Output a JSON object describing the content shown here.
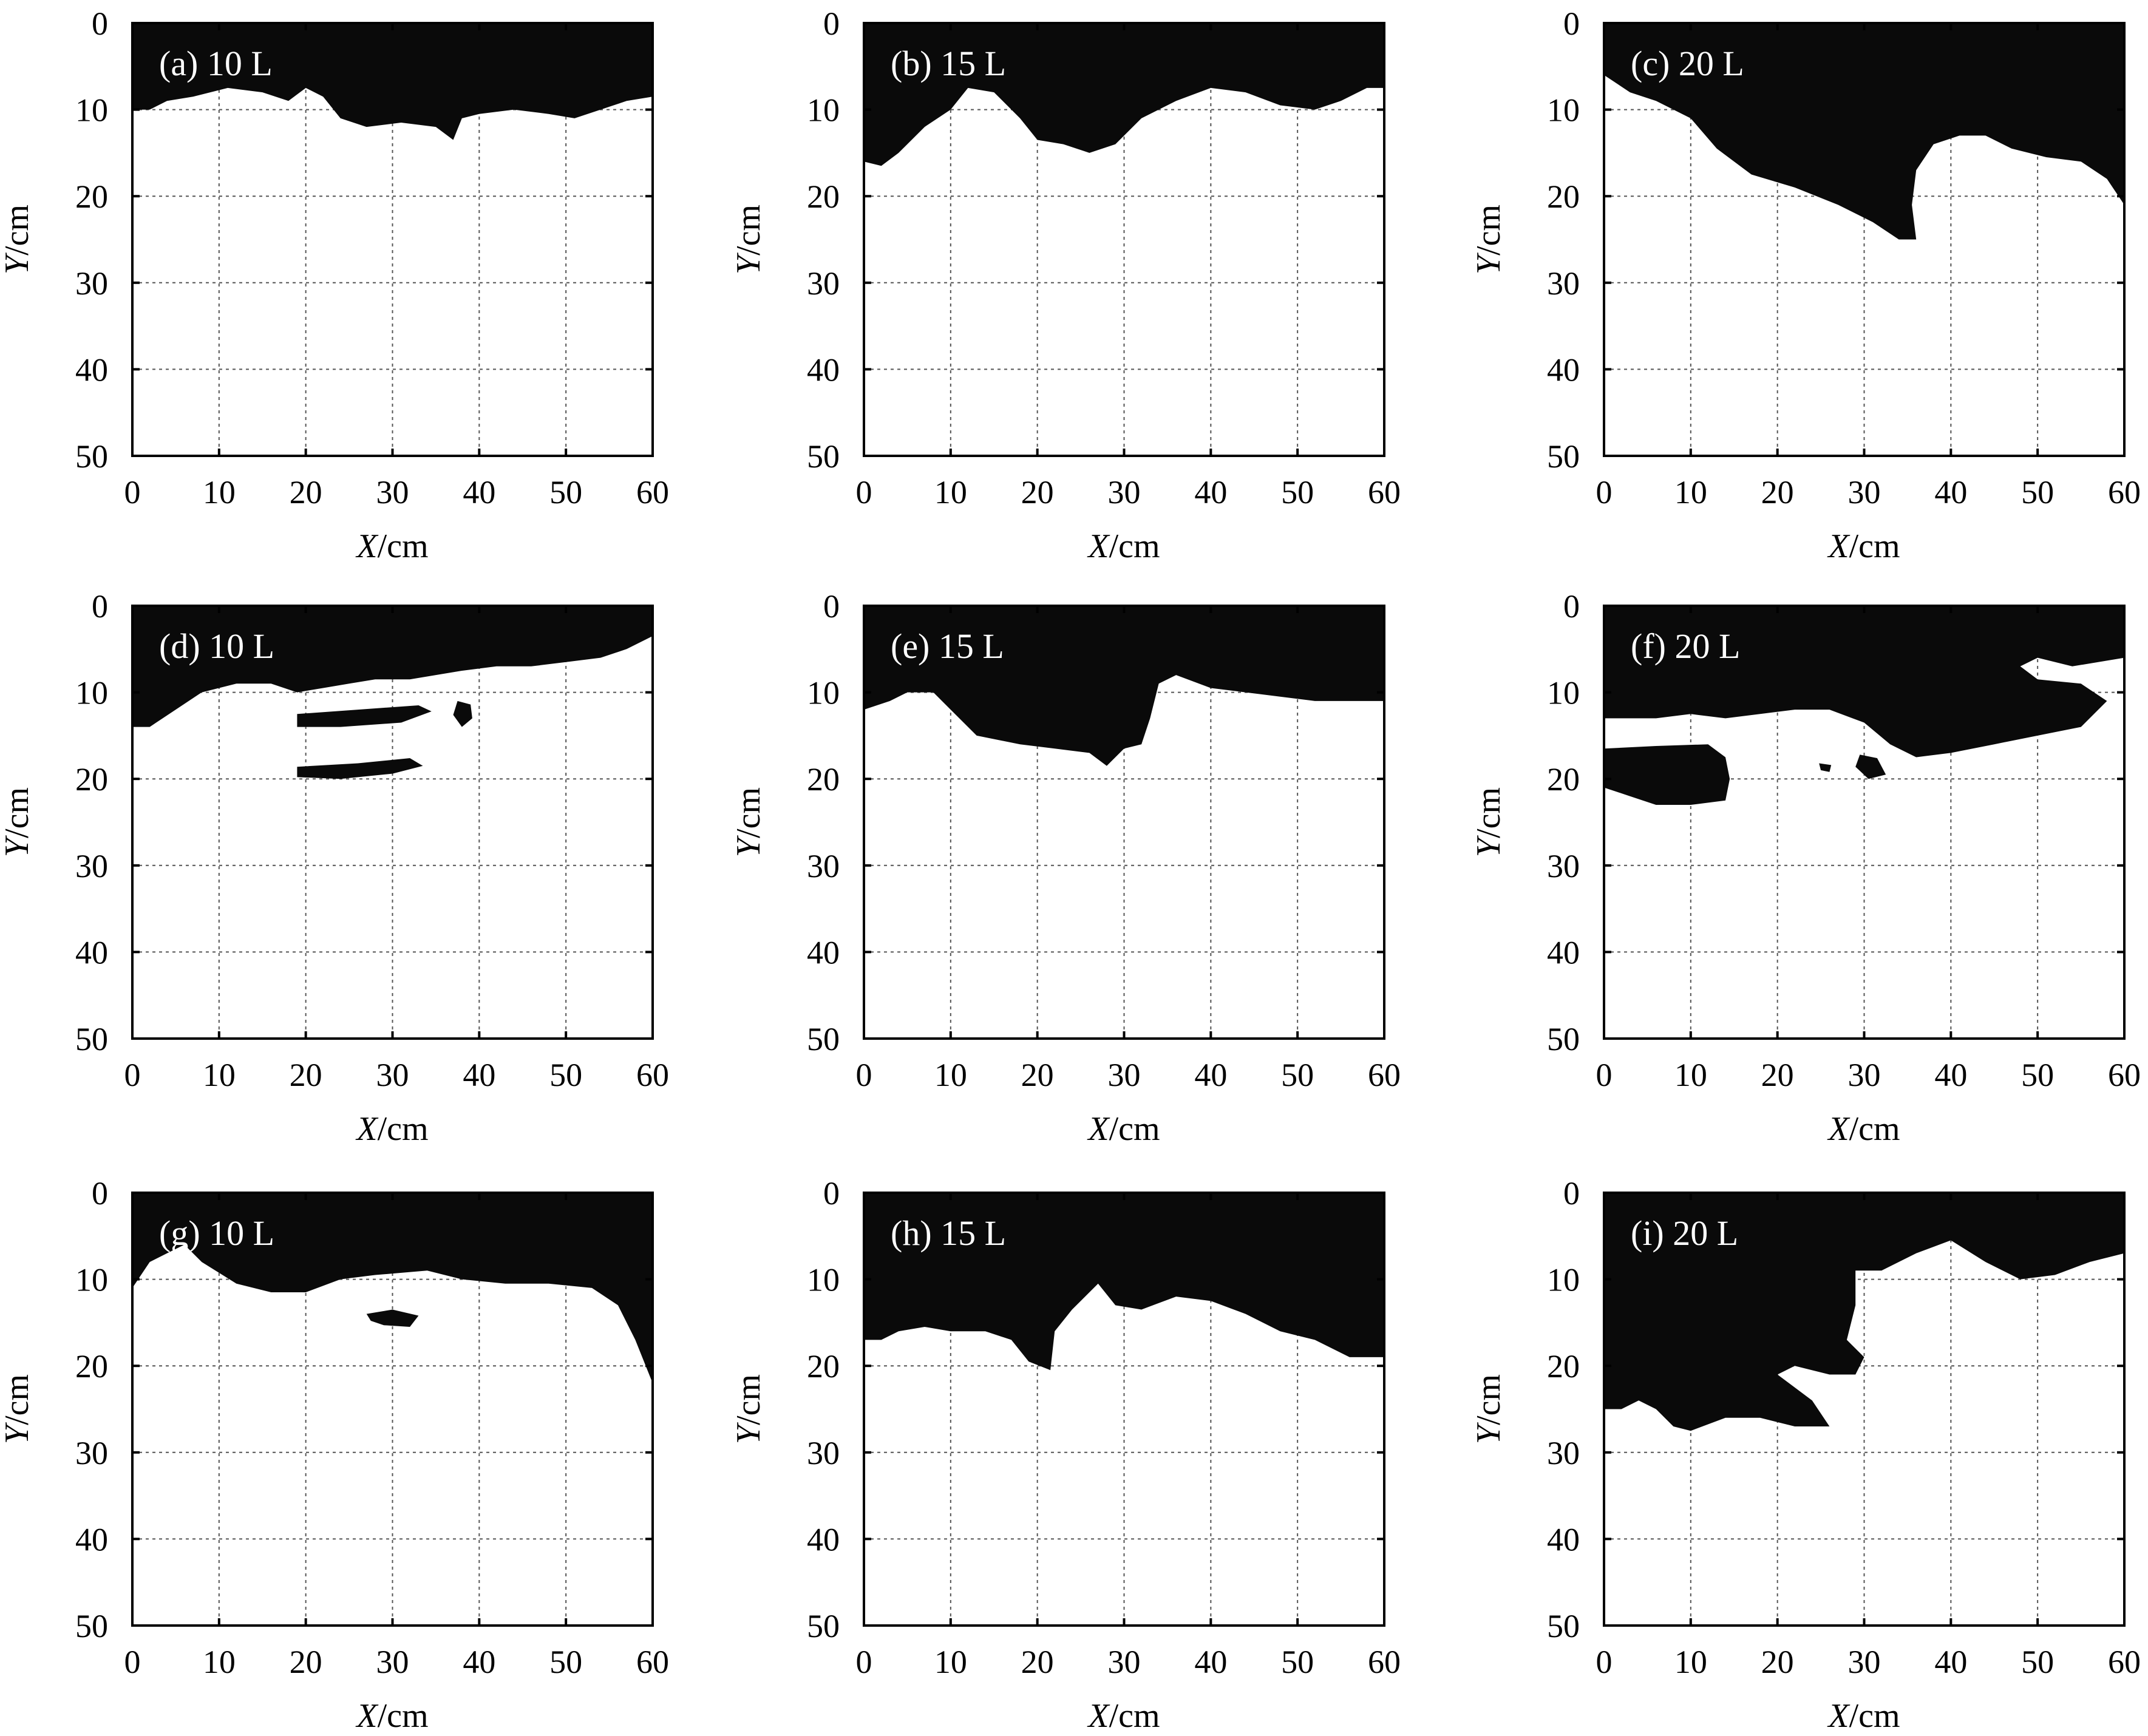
{
  "chart_data": [
    {
      "type": "area",
      "label": "(a) 10 L",
      "x_label": "X",
      "x_unit": "/cm",
      "y_label": "Y",
      "y_unit": "/cm",
      "xlim": [
        0,
        60
      ],
      "ylim": [
        0,
        50
      ],
      "y_inverted": true,
      "x_ticks": [
        "0",
        "10",
        "20",
        "30",
        "40",
        "50",
        "60"
      ],
      "y_ticks": [
        "0",
        "10",
        "20",
        "30",
        "40",
        "50"
      ],
      "grid": true,
      "regions": [
        [
          [
            0,
            0
          ],
          [
            60,
            0
          ],
          [
            60,
            8.5
          ],
          [
            57,
            9
          ],
          [
            54,
            10
          ],
          [
            51,
            11
          ],
          [
            48,
            10.5
          ],
          [
            44,
            10
          ],
          [
            40,
            10.5
          ],
          [
            38,
            11
          ],
          [
            37,
            13.5
          ],
          [
            35,
            12
          ],
          [
            31,
            11.5
          ],
          [
            27,
            12
          ],
          [
            24,
            11
          ],
          [
            22,
            8.5
          ],
          [
            20,
            7.5
          ],
          [
            18,
            9
          ],
          [
            15,
            8
          ],
          [
            11,
            7.5
          ],
          [
            7,
            8.5
          ],
          [
            4,
            9
          ],
          [
            2,
            10
          ],
          [
            0,
            10
          ]
        ]
      ]
    },
    {
      "type": "area",
      "label": "(b) 15 L",
      "x_label": "X",
      "x_unit": "/cm",
      "y_label": "Y",
      "y_unit": "/cm",
      "xlim": [
        0,
        60
      ],
      "ylim": [
        0,
        50
      ],
      "y_inverted": true,
      "x_ticks": [
        "0",
        "10",
        "20",
        "30",
        "40",
        "50",
        "60"
      ],
      "y_ticks": [
        "0",
        "10",
        "20",
        "30",
        "40",
        "50"
      ],
      "grid": true,
      "regions": [
        [
          [
            0,
            0
          ],
          [
            60,
            0
          ],
          [
            60,
            7.5
          ],
          [
            58,
            7.5
          ],
          [
            55,
            9
          ],
          [
            52,
            10
          ],
          [
            48,
            9.5
          ],
          [
            44,
            8
          ],
          [
            40,
            7.5
          ],
          [
            36,
            9
          ],
          [
            32,
            11
          ],
          [
            29,
            14
          ],
          [
            26,
            15
          ],
          [
            23,
            14
          ],
          [
            20,
            13.5
          ],
          [
            18,
            11
          ],
          [
            15,
            8
          ],
          [
            12,
            7.5
          ],
          [
            10,
            10
          ],
          [
            7,
            12
          ],
          [
            4,
            15
          ],
          [
            2,
            16.5
          ],
          [
            0,
            16
          ]
        ]
      ]
    },
    {
      "type": "area",
      "label": "(c) 20 L",
      "x_label": "X",
      "x_unit": "/cm",
      "y_label": "Y",
      "y_unit": "/cm",
      "xlim": [
        0,
        60
      ],
      "ylim": [
        0,
        50
      ],
      "y_inverted": true,
      "x_ticks": [
        "0",
        "10",
        "20",
        "30",
        "40",
        "50",
        "60"
      ],
      "y_ticks": [
        "0",
        "10",
        "20",
        "30",
        "40",
        "50"
      ],
      "grid": true,
      "regions": [
        [
          [
            0,
            0
          ],
          [
            60,
            0
          ],
          [
            60,
            21
          ],
          [
            58,
            18
          ],
          [
            55,
            16
          ],
          [
            51,
            15.5
          ],
          [
            47,
            14.5
          ],
          [
            44,
            13
          ],
          [
            41,
            13
          ],
          [
            38,
            14
          ],
          [
            36,
            17
          ],
          [
            35.5,
            21
          ],
          [
            36,
            25
          ],
          [
            34,
            25
          ],
          [
            31,
            23
          ],
          [
            27,
            21
          ],
          [
            22,
            19
          ],
          [
            17,
            17.5
          ],
          [
            13,
            14.5
          ],
          [
            10,
            11
          ],
          [
            6,
            9
          ],
          [
            3,
            8
          ],
          [
            0,
            6
          ]
        ]
      ]
    },
    {
      "type": "area",
      "label": "(d) 10 L",
      "x_label": "X",
      "x_unit": "/cm",
      "y_label": "Y",
      "y_unit": "/cm",
      "xlim": [
        0,
        60
      ],
      "ylim": [
        0,
        50
      ],
      "y_inverted": true,
      "x_ticks": [
        "0",
        "10",
        "20",
        "30",
        "40",
        "50",
        "60"
      ],
      "y_ticks": [
        "0",
        "10",
        "20",
        "30",
        "40",
        "50"
      ],
      "grid": true,
      "regions": [
        [
          [
            0,
            0
          ],
          [
            60,
            0
          ],
          [
            60,
            3.5
          ],
          [
            57,
            5
          ],
          [
            54,
            6
          ],
          [
            50,
            6.5
          ],
          [
            46,
            7
          ],
          [
            42,
            7
          ],
          [
            38,
            7.5
          ],
          [
            35,
            8
          ],
          [
            32,
            8.5
          ],
          [
            28,
            8.5
          ],
          [
            25,
            9
          ],
          [
            22,
            9.5
          ],
          [
            19,
            10
          ],
          [
            16,
            9
          ],
          [
            12,
            9
          ],
          [
            8,
            10
          ],
          [
            5,
            12
          ],
          [
            2,
            14
          ],
          [
            0,
            14
          ]
        ],
        [
          [
            19,
            12.5
          ],
          [
            26,
            12
          ],
          [
            33,
            11.5
          ],
          [
            34.5,
            12.2
          ],
          [
            31,
            13.5
          ],
          [
            24,
            14
          ],
          [
            19,
            14
          ]
        ],
        [
          [
            19,
            18.6
          ],
          [
            26,
            18.2
          ],
          [
            32,
            17.6
          ],
          [
            33.5,
            18.5
          ],
          [
            30,
            19.4
          ],
          [
            24,
            20
          ],
          [
            19,
            19.8
          ]
        ],
        [
          [
            37.5,
            11
          ],
          [
            39,
            11.4
          ],
          [
            39.2,
            13
          ],
          [
            38,
            14
          ],
          [
            37,
            12.6
          ]
        ]
      ]
    },
    {
      "type": "area",
      "label": "(e) 15 L",
      "x_label": "X",
      "x_unit": "/cm",
      "y_label": "Y",
      "y_unit": "/cm",
      "xlim": [
        0,
        60
      ],
      "ylim": [
        0,
        50
      ],
      "y_inverted": true,
      "x_ticks": [
        "0",
        "10",
        "20",
        "30",
        "40",
        "50",
        "60"
      ],
      "y_ticks": [
        "0",
        "10",
        "20",
        "30",
        "40",
        "50"
      ],
      "grid": true,
      "regions": [
        [
          [
            0,
            0
          ],
          [
            60,
            0
          ],
          [
            60,
            11
          ],
          [
            56,
            11
          ],
          [
            52,
            11
          ],
          [
            48,
            10.5
          ],
          [
            44,
            10
          ],
          [
            40,
            9.5
          ],
          [
            36,
            8
          ],
          [
            34,
            9
          ],
          [
            33,
            13
          ],
          [
            32,
            16
          ],
          [
            30,
            16.5
          ],
          [
            28,
            18.5
          ],
          [
            26,
            17
          ],
          [
            22,
            16.5
          ],
          [
            18,
            16
          ],
          [
            13,
            15
          ],
          [
            10,
            12
          ],
          [
            8,
            10
          ],
          [
            5,
            10
          ],
          [
            3,
            11
          ],
          [
            0,
            12
          ]
        ]
      ]
    },
    {
      "type": "area",
      "label": "(f) 20 L",
      "x_label": "X",
      "x_unit": "/cm",
      "y_label": "Y",
      "y_unit": "/cm",
      "xlim": [
        0,
        60
      ],
      "ylim": [
        0,
        50
      ],
      "y_inverted": true,
      "x_ticks": [
        "0",
        "10",
        "20",
        "30",
        "40",
        "50",
        "60"
      ],
      "y_ticks": [
        "0",
        "10",
        "20",
        "30",
        "40",
        "50"
      ],
      "grid": true,
      "regions": [
        [
          [
            0,
            0
          ],
          [
            60,
            0
          ],
          [
            60,
            6
          ],
          [
            54,
            7
          ],
          [
            50,
            6
          ],
          [
            48,
            7
          ],
          [
            50,
            8.5
          ],
          [
            55,
            9
          ],
          [
            58,
            11
          ],
          [
            55,
            14
          ],
          [
            50,
            15
          ],
          [
            45,
            16
          ],
          [
            40,
            17
          ],
          [
            36,
            17.5
          ],
          [
            33,
            16
          ],
          [
            30,
            13.5
          ],
          [
            26,
            12
          ],
          [
            22,
            12
          ],
          [
            18,
            12.5
          ],
          [
            14,
            13
          ],
          [
            10,
            12.5
          ],
          [
            6,
            13
          ],
          [
            2,
            13
          ],
          [
            0,
            13
          ]
        ],
        [
          [
            0,
            16.5
          ],
          [
            6,
            16.2
          ],
          [
            12,
            16
          ],
          [
            14,
            17.5
          ],
          [
            14.5,
            20
          ],
          [
            14,
            22.5
          ],
          [
            10,
            23
          ],
          [
            6,
            23
          ],
          [
            3,
            22
          ],
          [
            0,
            21
          ]
        ],
        [
          [
            29.5,
            17.2
          ],
          [
            31.5,
            17.6
          ],
          [
            32.5,
            19.5
          ],
          [
            30.5,
            20
          ],
          [
            29,
            18.6
          ]
        ],
        [
          [
            24.8,
            18.2
          ],
          [
            26.2,
            18.4
          ],
          [
            26,
            19.2
          ],
          [
            25,
            19
          ]
        ]
      ]
    },
    {
      "type": "area",
      "label": "(g) 10 L",
      "x_label": "X",
      "x_unit": "/cm",
      "y_label": "Y",
      "y_unit": "/cm",
      "xlim": [
        0,
        60
      ],
      "ylim": [
        0,
        50
      ],
      "y_inverted": true,
      "x_ticks": [
        "0",
        "10",
        "20",
        "30",
        "40",
        "50",
        "60"
      ],
      "y_ticks": [
        "0",
        "10",
        "20",
        "30",
        "40",
        "50"
      ],
      "grid": true,
      "regions": [
        [
          [
            0,
            0
          ],
          [
            60,
            0
          ],
          [
            60,
            22
          ],
          [
            58,
            17
          ],
          [
            56,
            13
          ],
          [
            53,
            11
          ],
          [
            48,
            10.5
          ],
          [
            43,
            10.5
          ],
          [
            38,
            10
          ],
          [
            34,
            9
          ],
          [
            28,
            9.5
          ],
          [
            24,
            10
          ],
          [
            20,
            11.5
          ],
          [
            16,
            11.5
          ],
          [
            12,
            10.5
          ],
          [
            8,
            8
          ],
          [
            6,
            6
          ],
          [
            4,
            7
          ],
          [
            2,
            8
          ],
          [
            0,
            11
          ]
        ],
        [
          [
            27,
            14
          ],
          [
            30,
            13.5
          ],
          [
            33,
            14.2
          ],
          [
            32,
            15.5
          ],
          [
            29,
            15.3
          ],
          [
            27.5,
            14.8
          ]
        ]
      ]
    },
    {
      "type": "area",
      "label": "(h) 15 L",
      "x_label": "X",
      "x_unit": "/cm",
      "y_label": "Y",
      "y_unit": "/cm",
      "xlim": [
        0,
        60
      ],
      "ylim": [
        0,
        50
      ],
      "y_inverted": true,
      "x_ticks": [
        "0",
        "10",
        "20",
        "30",
        "40",
        "50",
        "60"
      ],
      "y_ticks": [
        "0",
        "10",
        "20",
        "30",
        "40",
        "50"
      ],
      "grid": true,
      "regions": [
        [
          [
            0,
            0
          ],
          [
            60,
            0
          ],
          [
            60,
            19
          ],
          [
            56,
            19
          ],
          [
            52,
            17
          ],
          [
            48,
            16
          ],
          [
            44,
            14
          ],
          [
            40,
            12.5
          ],
          [
            36,
            12
          ],
          [
            32,
            13.5
          ],
          [
            29,
            13
          ],
          [
            27,
            10.5
          ],
          [
            24,
            13.5
          ],
          [
            22,
            16
          ],
          [
            21.5,
            20.5
          ],
          [
            19,
            19.5
          ],
          [
            17,
            17
          ],
          [
            14,
            16
          ],
          [
            10,
            16
          ],
          [
            7,
            15.5
          ],
          [
            4,
            16
          ],
          [
            2,
            17
          ],
          [
            0,
            17
          ]
        ]
      ]
    },
    {
      "type": "area",
      "label": "(i) 20 L",
      "x_label": "X",
      "x_unit": "/cm",
      "y_label": "Y",
      "y_unit": "/cm",
      "xlim": [
        0,
        60
      ],
      "ylim": [
        0,
        50
      ],
      "y_inverted": true,
      "x_ticks": [
        "0",
        "10",
        "20",
        "30",
        "40",
        "50",
        "60"
      ],
      "y_ticks": [
        "0",
        "10",
        "20",
        "30",
        "40",
        "50"
      ],
      "grid": true,
      "regions": [
        [
          [
            0,
            0
          ],
          [
            60,
            0
          ],
          [
            60,
            7
          ],
          [
            56,
            8
          ],
          [
            52,
            9.5
          ],
          [
            48,
            10
          ],
          [
            44,
            8
          ],
          [
            40,
            5.5
          ],
          [
            36,
            7
          ],
          [
            32,
            9
          ],
          [
            29,
            9
          ],
          [
            29,
            13
          ],
          [
            28,
            17
          ],
          [
            30,
            19
          ],
          [
            29,
            21
          ],
          [
            26,
            21
          ],
          [
            22,
            20
          ],
          [
            20,
            21
          ],
          [
            24,
            24
          ],
          [
            26,
            27
          ],
          [
            22,
            27
          ],
          [
            18,
            26
          ],
          [
            14,
            26
          ],
          [
            10,
            27.5
          ],
          [
            8,
            27
          ],
          [
            6,
            25
          ],
          [
            4,
            24
          ],
          [
            2,
            25
          ],
          [
            0,
            25
          ]
        ]
      ]
    }
  ]
}
